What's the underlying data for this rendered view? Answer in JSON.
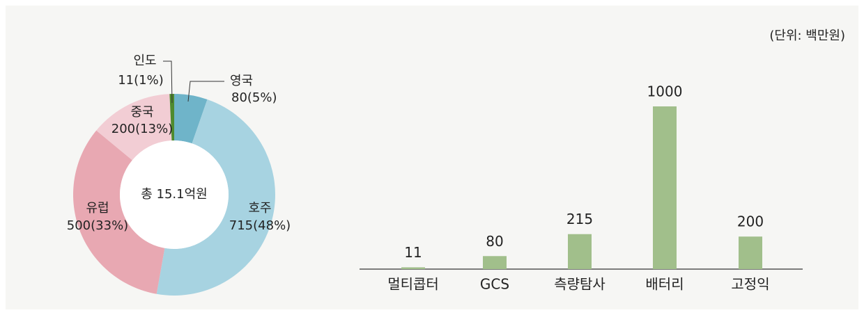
{
  "unit": "(단위: 백만원)",
  "chart_data": [
    {
      "type": "donut",
      "center_label": "총 15.1억원",
      "categories": [
        "영국",
        "호주",
        "유럽",
        "중국",
        "인도"
      ],
      "values": [
        80,
        715,
        500,
        200,
        11
      ],
      "value_labels": [
        "80(5%)",
        "715(48%)",
        "500(33%)",
        "200(13%)",
        "11(1%)"
      ],
      "colors": [
        "#6fb4c9",
        "#a7d3e1",
        "#e8a8b2",
        "#f2cdd4",
        "#4f8a2e"
      ]
    },
    {
      "type": "bar",
      "categories": [
        "멀티콥터",
        "GCS",
        "측량탐사",
        "배터리",
        "고정익"
      ],
      "values": [
        11,
        80,
        215,
        1000,
        200
      ],
      "color": "#a1bf8b"
    }
  ]
}
